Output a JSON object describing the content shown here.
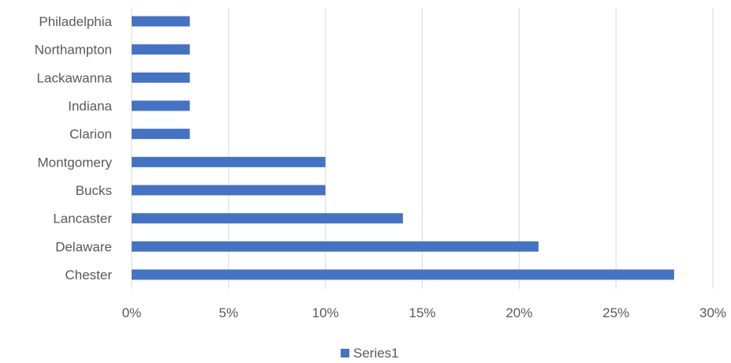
{
  "chart_data": {
    "type": "bar",
    "orientation": "horizontal",
    "categories": [
      "Chester",
      "Delaware",
      "Lancaster",
      "Bucks",
      "Montgomery",
      "Clarion",
      "Indiana",
      "Lackawanna",
      "Northampton",
      "Philadelphia"
    ],
    "series": [
      {
        "name": "Series1",
        "values": [
          0.28,
          0.21,
          0.14,
          0.1,
          0.1,
          0.03,
          0.03,
          0.03,
          0.03,
          0.03
        ]
      }
    ],
    "xlim": [
      0,
      0.3
    ],
    "xticks": [
      0,
      0.05,
      0.1,
      0.15,
      0.2,
      0.25,
      0.3
    ],
    "xtick_labels": [
      "0%",
      "5%",
      "10%",
      "15%",
      "20%",
      "25%",
      "30%"
    ],
    "grid": true,
    "legend_position": "bottom",
    "colors": {
      "bar": "#4472c4",
      "grid": "#d9d9d9",
      "text": "#595959"
    }
  }
}
